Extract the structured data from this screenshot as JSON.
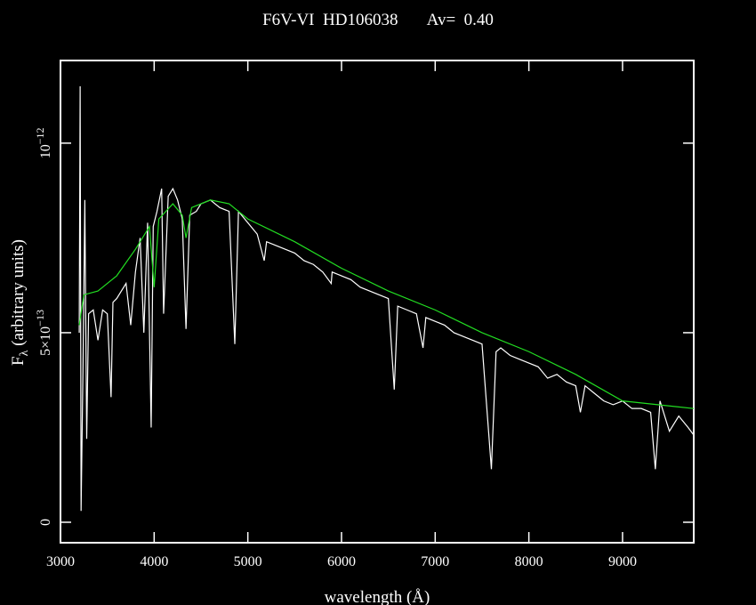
{
  "chart_data": {
    "type": "line",
    "title": "F6V-VI  HD106038       Av=  0.40",
    "xlabel": "wavelength (Å)",
    "ylabel": {
      "text": "F",
      "subscript": "λ",
      "rest": " (arbitrary units)"
    },
    "xlim": [
      3000,
      9760
    ],
    "ylim": [
      -5.4e-14,
      1.218e-12
    ],
    "xticks": [
      3000,
      4000,
      5000,
      6000,
      7000,
      8000,
      9000
    ],
    "yticks": [
      {
        "value": 0,
        "label": "0"
      },
      {
        "value": 5e-13,
        "label": "5×10",
        "exponent": "−13"
      },
      {
        "value": 1e-12,
        "label": "10",
        "exponent": "−12"
      }
    ],
    "series": [
      {
        "color": "#ffffff",
        "x": [
          3200,
          3210,
          3220,
          3240,
          3260,
          3280,
          3300,
          3350,
          3400,
          3450,
          3500,
          3540,
          3560,
          3600,
          3650,
          3700,
          3750,
          3800,
          3850,
          3890,
          3930,
          3968,
          3990,
          4030,
          4080,
          4101,
          4150,
          4200,
          4250,
          4300,
          4340,
          4380,
          4450,
          4500,
          4600,
          4700,
          4800,
          4861,
          4900,
          5000,
          5100,
          5175,
          5200,
          5300,
          5400,
          5500,
          5600,
          5700,
          5800,
          5890,
          5900,
          6000,
          6100,
          6200,
          6300,
          6400,
          6500,
          6563,
          6600,
          6700,
          6800,
          6870,
          6900,
          7000,
          7100,
          7200,
          7300,
          7400,
          7500,
          7600,
          7650,
          7700,
          7800,
          7900,
          8000,
          8100,
          8200,
          8300,
          8400,
          8500,
          8550,
          8600,
          8700,
          8800,
          8900,
          9000,
          9100,
          9200,
          9300,
          9350,
          9400,
          9500,
          9600,
          9700,
          9760
        ],
        "values": [
          5e-13,
          1.15e-12,
          3e-14,
          4e-13,
          8.5e-13,
          2.2e-13,
          5.5e-13,
          5.6e-13,
          4.8e-13,
          5.6e-13,
          5.5e-13,
          3.3e-13,
          5.8e-13,
          5.9e-13,
          6.1e-13,
          6.3e-13,
          5.2e-13,
          6.6e-13,
          7.5e-13,
          5e-13,
          7.9e-13,
          2.5e-13,
          7.8e-13,
          8.2e-13,
          8.8e-13,
          5.5e-13,
          8.6e-13,
          8.8e-13,
          8.5e-13,
          8e-13,
          5.1e-13,
          8.1e-13,
          8.2e-13,
          8.4e-13,
          8.5e-13,
          8.3e-13,
          8.2e-13,
          4.7e-13,
          8.2e-13,
          7.9e-13,
          7.6e-13,
          6.9e-13,
          7.4e-13,
          7.3e-13,
          7.2e-13,
          7.1e-13,
          6.9e-13,
          6.8e-13,
          6.6e-13,
          6.3e-13,
          6.6e-13,
          6.5e-13,
          6.4e-13,
          6.2e-13,
          6.1e-13,
          6e-13,
          5.9e-13,
          3.5e-13,
          5.7e-13,
          5.6e-13,
          5.5e-13,
          4.6e-13,
          5.4e-13,
          5.3e-13,
          5.2e-13,
          5e-13,
          4.9e-13,
          4.8e-13,
          4.7e-13,
          1.4e-13,
          4.5e-13,
          4.6e-13,
          4.4e-13,
          4.3e-13,
          4.2e-13,
          4.1e-13,
          3.8e-13,
          3.9e-13,
          3.7e-13,
          3.6e-13,
          2.9e-13,
          3.6e-13,
          3.4e-13,
          3.2e-13,
          3.1e-13,
          3.2e-13,
          3e-13,
          3e-13,
          2.9e-13,
          1.4e-13,
          3.2e-13,
          2.4e-13,
          2.8e-13,
          2.5e-13,
          2.3e-13
        ]
      },
      {
        "color": "#22dd22",
        "x": [
          3200,
          3250,
          3400,
          3600,
          3800,
          3950,
          4000,
          4050,
          4200,
          4300,
          4340,
          4400,
          4600,
          4800,
          5000,
          5500,
          6000,
          6500,
          7000,
          7500,
          8000,
          8500,
          9000,
          9760
        ],
        "values": [
          5.2e-13,
          6e-13,
          6.1e-13,
          6.5e-13,
          7.2e-13,
          7.8e-13,
          6.2e-13,
          8e-13,
          8.4e-13,
          8.1e-13,
          7.5e-13,
          8.3e-13,
          8.5e-13,
          8.4e-13,
          8e-13,
          7.4e-13,
          6.7e-13,
          6.1e-13,
          5.6e-13,
          5e-13,
          4.5e-13,
          3.9e-13,
          3.2e-13,
          3e-13
        ]
      }
    ]
  }
}
